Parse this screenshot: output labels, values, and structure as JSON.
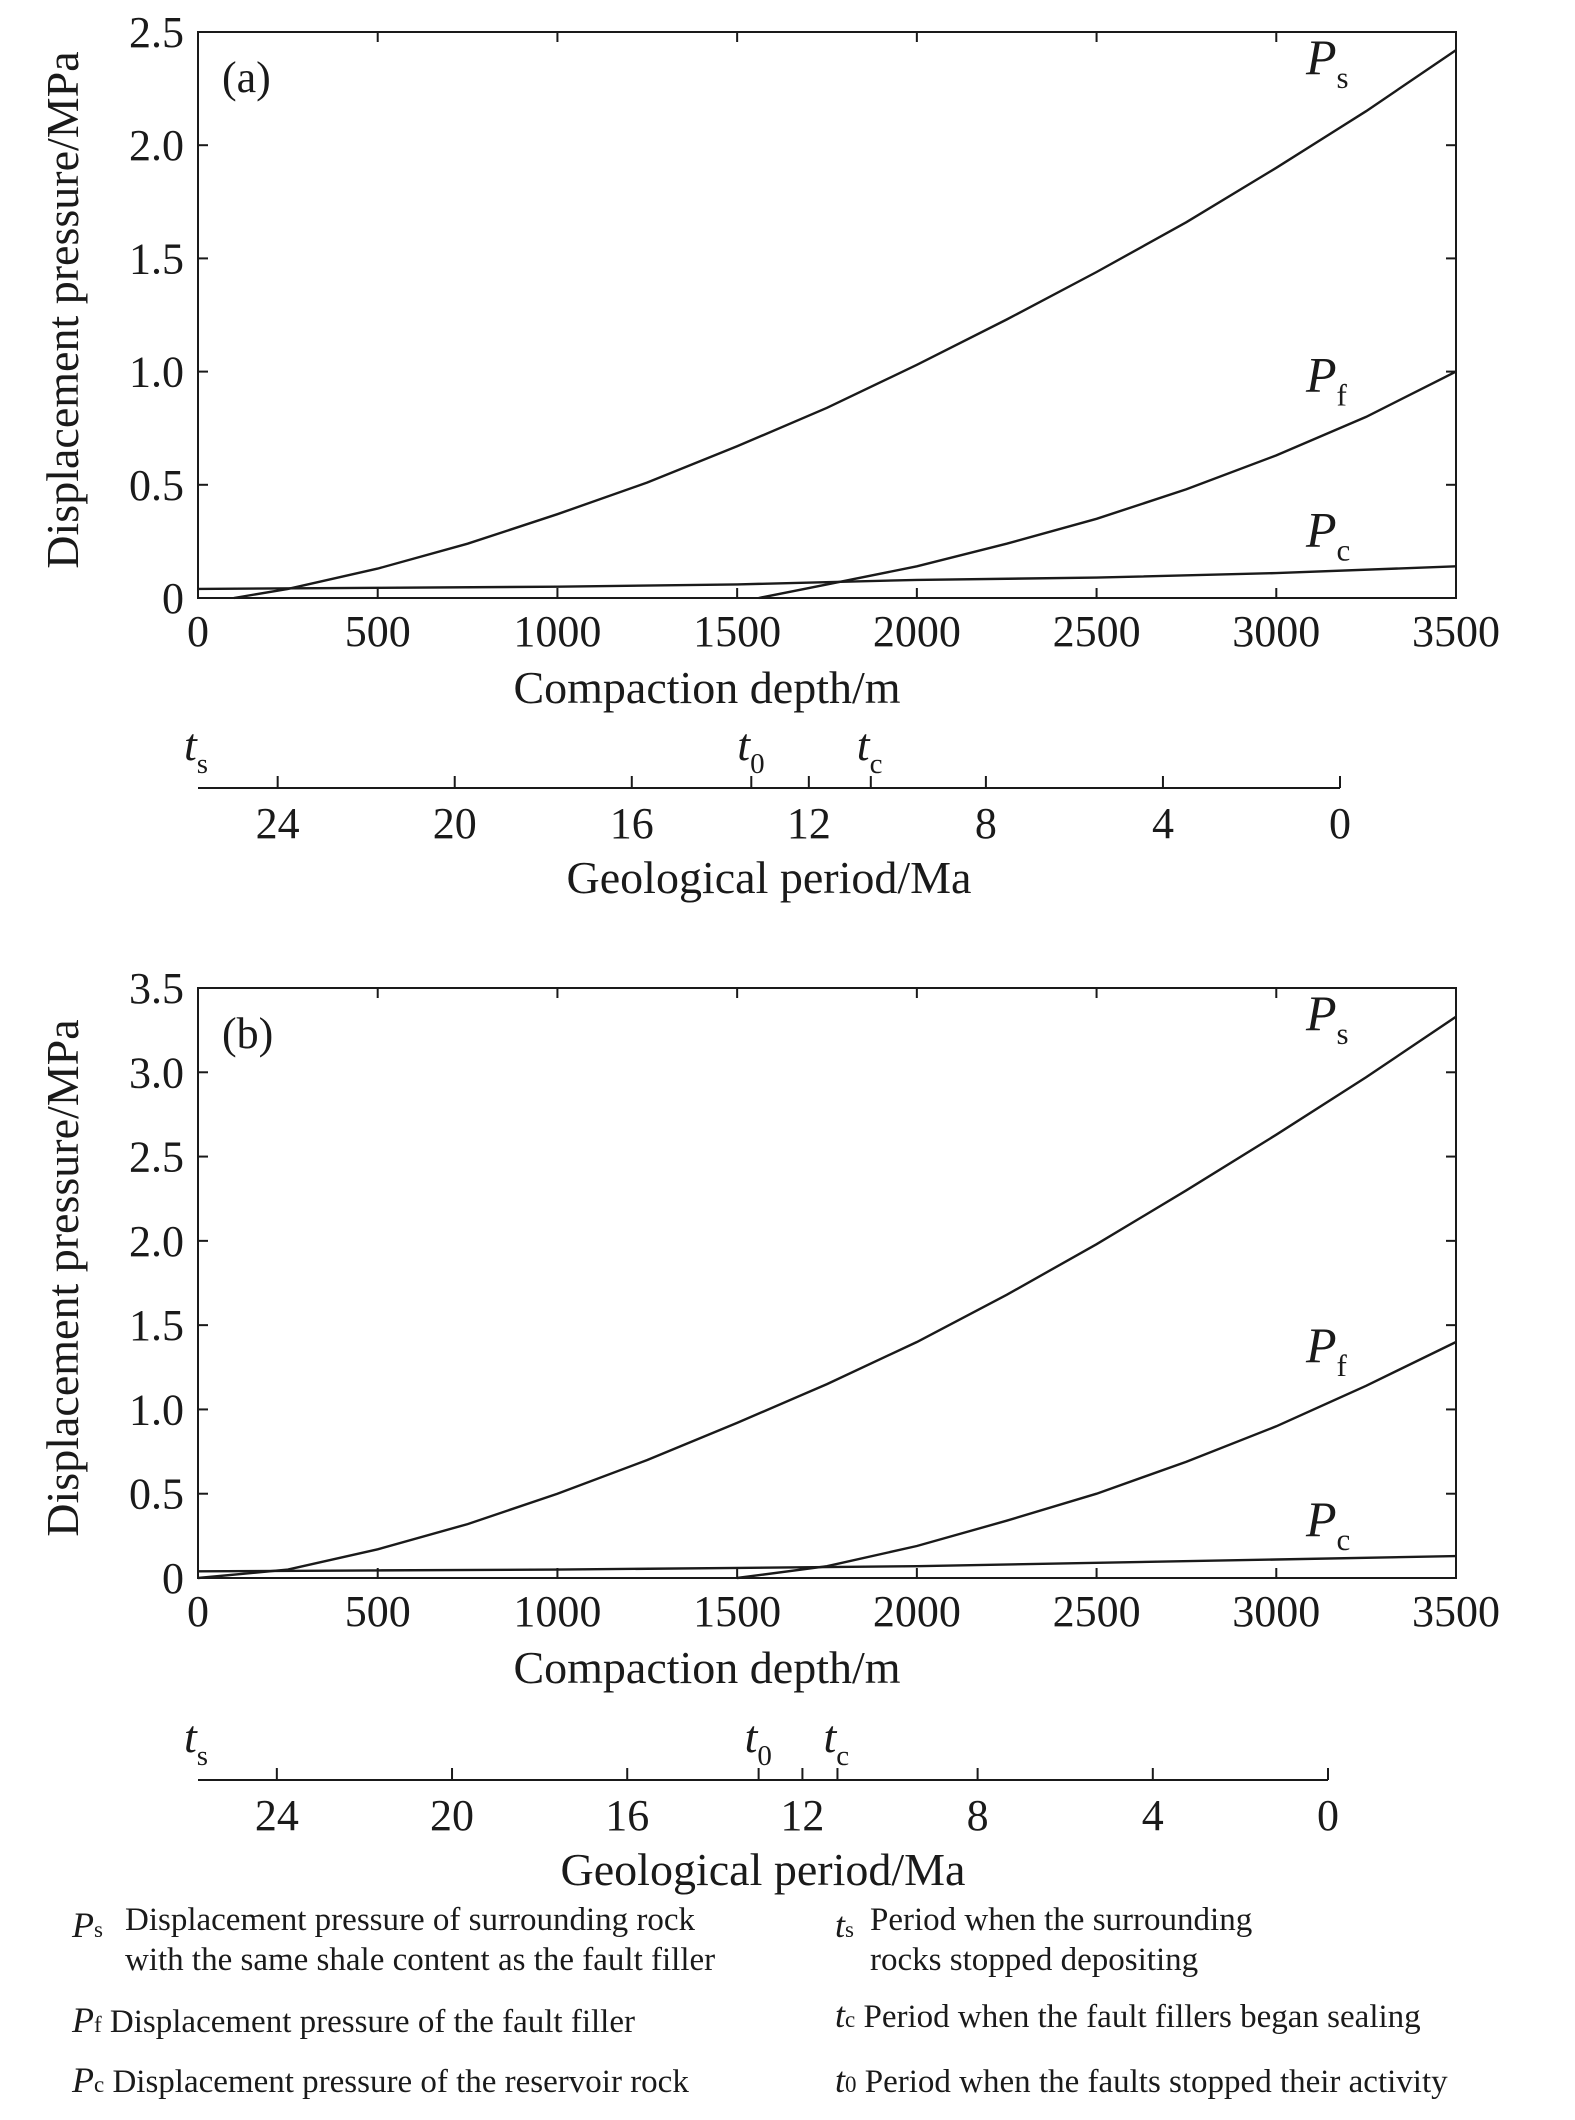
{
  "chart_data": [
    {
      "type": "line",
      "panel_label": "(a)",
      "xlabel": "Compaction depth/m",
      "ylabel": "Displacement pressure/MPa",
      "xlim": [
        0,
        3500
      ],
      "ylim": [
        0,
        2.5
      ],
      "xticks": [
        "0",
        "500",
        "1000",
        "1500",
        "2000",
        "2500",
        "3000",
        "3500"
      ],
      "yticks": [
        "0",
        "0.5",
        "1.0",
        "1.5",
        "2.0",
        "2.5"
      ],
      "grid": false,
      "series": [
        {
          "name": "Ps",
          "label": "P",
          "sub": "s",
          "x": [
            100,
            250,
            500,
            750,
            1000,
            1250,
            1500,
            1750,
            2000,
            2250,
            2500,
            2750,
            3000,
            3250,
            3500
          ],
          "y": [
            0.0,
            0.04,
            0.13,
            0.24,
            0.37,
            0.51,
            0.67,
            0.84,
            1.03,
            1.23,
            1.44,
            1.66,
            1.9,
            2.15,
            2.42
          ]
        },
        {
          "name": "Pf",
          "label": "P",
          "sub": "f",
          "x": [
            1560,
            1750,
            2000,
            2250,
            2500,
            2750,
            3000,
            3250,
            3500
          ],
          "y": [
            0.0,
            0.06,
            0.14,
            0.24,
            0.35,
            0.48,
            0.63,
            0.8,
            1.0
          ]
        },
        {
          "name": "Pc",
          "label": "P",
          "sub": "c",
          "x": [
            0,
            500,
            1000,
            1500,
            2000,
            2500,
            3000,
            3500
          ],
          "y": [
            0.04,
            0.045,
            0.05,
            0.06,
            0.08,
            0.09,
            0.11,
            0.14
          ]
        }
      ],
      "period_axis": {
        "label": "Geological period/Ma",
        "ticks": [
          "24",
          "20",
          "16",
          "12",
          "8",
          "4",
          "0"
        ],
        "tick_values": [
          24,
          20,
          16,
          12,
          8,
          4,
          0
        ],
        "range_ma": [
          25.8,
          0
        ],
        "markers": [
          {
            "label": "t",
            "sub": "s",
            "ma": 25.8
          },
          {
            "label": "t",
            "sub": "0",
            "ma": 13.3
          },
          {
            "label": "t",
            "sub": "c",
            "ma": 10.6
          }
        ]
      }
    },
    {
      "type": "line",
      "panel_label": "(b)",
      "xlabel": "Compaction depth/m",
      "ylabel": "Displacement pressure/MPa",
      "xlim": [
        0,
        3500
      ],
      "ylim": [
        0,
        3.5
      ],
      "xticks": [
        "0",
        "500",
        "1000",
        "1500",
        "2000",
        "2500",
        "3000",
        "3500"
      ],
      "yticks": [
        "0",
        "0.5",
        "1.0",
        "1.5",
        "2.0",
        "2.5",
        "3.0",
        "3.5"
      ],
      "grid": false,
      "series": [
        {
          "name": "Ps",
          "label": "P",
          "sub": "s",
          "x": [
            0,
            250,
            500,
            750,
            1000,
            1250,
            1500,
            1750,
            2000,
            2250,
            2500,
            2750,
            3000,
            3250,
            3500
          ],
          "y": [
            0.0,
            0.05,
            0.17,
            0.32,
            0.5,
            0.7,
            0.92,
            1.15,
            1.4,
            1.68,
            1.98,
            2.3,
            2.63,
            2.97,
            3.33
          ]
        },
        {
          "name": "Pf",
          "label": "P",
          "sub": "f",
          "x": [
            1500,
            1750,
            2000,
            2250,
            2500,
            2750,
            3000,
            3250,
            3500
          ],
          "y": [
            0.0,
            0.07,
            0.19,
            0.34,
            0.5,
            0.69,
            0.9,
            1.14,
            1.4
          ]
        },
        {
          "name": "Pc",
          "label": "P",
          "sub": "c",
          "x": [
            0,
            500,
            1000,
            1500,
            2000,
            2500,
            3000,
            3500
          ],
          "y": [
            0.04,
            0.045,
            0.05,
            0.06,
            0.07,
            0.09,
            0.11,
            0.13
          ]
        }
      ],
      "period_axis": {
        "label": "Geological period/Ma",
        "ticks": [
          "24",
          "20",
          "16",
          "12",
          "8",
          "4",
          "0"
        ],
        "tick_values": [
          24,
          20,
          16,
          12,
          8,
          4,
          0
        ],
        "range_ma": [
          25.8,
          0
        ],
        "markers": [
          {
            "label": "t",
            "sub": "s",
            "ma": 25.8
          },
          {
            "label": "t",
            "sub": "0",
            "ma": 13.0
          },
          {
            "label": "t",
            "sub": "c",
            "ma": 11.2
          }
        ]
      }
    }
  ],
  "legend": [
    {
      "sym": "P",
      "sub": "s",
      "text1": "Displacement pressure of surrounding rock",
      "text2": "with the same shale content as the fault filler"
    },
    {
      "sym": "t",
      "sub": "s",
      "text1": "Period when the surrounding",
      "text2": "rocks stopped depositing"
    },
    {
      "sym": "P",
      "sub": "f",
      "text1": "Displacement pressure of the fault filler",
      "text2": ""
    },
    {
      "sym": "t",
      "sub": "c",
      "text1": "Period when the fault fillers began sealing",
      "text2": ""
    },
    {
      "sym": "P",
      "sub": "c",
      "text1": "Displacement pressure of the reservoir rock",
      "text2": ""
    },
    {
      "sym": "t",
      "sub": "0",
      "text1": "Period when the faults stopped their activity",
      "text2": ""
    }
  ]
}
